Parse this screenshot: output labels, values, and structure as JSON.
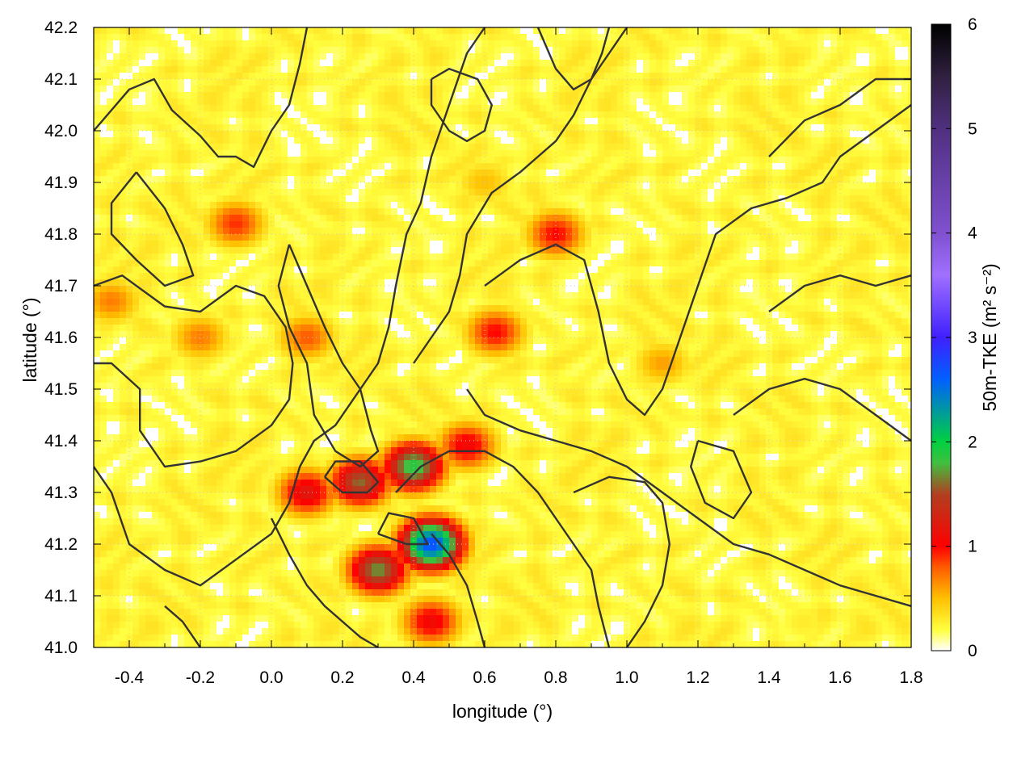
{
  "chart_data": {
    "type": "heatmap",
    "title": "",
    "xlabel": "longitude (°)",
    "ylabel": "latitude (°)",
    "colorbar_label": "50m-TKE (m² s⁻²)",
    "xlim": [
      -0.5,
      1.8
    ],
    "ylim": [
      41.0,
      42.2
    ],
    "x_ticks": [
      "-0.4",
      "-0.2",
      "0.0",
      "0.2",
      "0.4",
      "0.6",
      "0.8",
      "1.0",
      "1.2",
      "1.4",
      "1.6",
      "1.8"
    ],
    "x_tick_values": [
      -0.4,
      -0.2,
      0.0,
      0.2,
      0.4,
      0.6,
      0.8,
      1.0,
      1.2,
      1.4,
      1.6,
      1.8
    ],
    "y_ticks": [
      "41.0",
      "41.1",
      "41.2",
      "41.3",
      "41.4",
      "41.5",
      "41.6",
      "41.7",
      "41.8",
      "41.9",
      "42.0",
      "42.1",
      "42.2"
    ],
    "y_tick_values": [
      41.0,
      41.1,
      41.2,
      41.3,
      41.4,
      41.5,
      41.6,
      41.7,
      41.8,
      41.9,
      42.0,
      42.1,
      42.2
    ],
    "colorbar_range": [
      0,
      6
    ],
    "colorbar_ticks": [
      "0",
      "1",
      "2",
      "3",
      "4",
      "5",
      "6"
    ],
    "colorbar_tick_values": [
      0,
      1,
      2,
      3,
      4,
      5,
      6
    ],
    "colormap": [
      "#ffffff",
      "#ffff40",
      "#ffc000",
      "#ff5a00",
      "#ff0000",
      "#b04020",
      "#40c040",
      "#00d040",
      "#0060ff",
      "#4020ff",
      "#a070ff",
      "#8050d0",
      "#503080",
      "#302040",
      "#000000"
    ],
    "colormap_stops": [
      0,
      0.2,
      0.5,
      0.8,
      1.0,
      1.5,
      1.8,
      2.0,
      2.6,
      3.0,
      3.6,
      4.0,
      5.0,
      5.5,
      6.0
    ],
    "hotspots": [
      {
        "lon": 0.4,
        "lat": 41.35,
        "tke": 1.9
      },
      {
        "lon": 0.45,
        "lat": 41.2,
        "tke": 2.7
      },
      {
        "lon": 0.3,
        "lat": 41.15,
        "tke": 1.7
      },
      {
        "lon": 0.1,
        "lat": 41.3,
        "tke": 1.2
      },
      {
        "lon": 0.25,
        "lat": 41.32,
        "tke": 1.6
      },
      {
        "lon": 0.55,
        "lat": 41.39,
        "tke": 1.1
      },
      {
        "lon": 0.45,
        "lat": 41.05,
        "tke": 1.1
      },
      {
        "lon": -0.1,
        "lat": 41.82,
        "tke": 0.9
      },
      {
        "lon": -0.2,
        "lat": 41.6,
        "tke": 0.7
      },
      {
        "lon": 0.63,
        "lat": 41.61,
        "tke": 1.0
      },
      {
        "lon": 0.8,
        "lat": 41.8,
        "tke": 1.0
      },
      {
        "lon": -0.45,
        "lat": 41.67,
        "tke": 0.7
      },
      {
        "lon": 0.1,
        "lat": 41.6,
        "tke": 0.8
      },
      {
        "lon": 1.5,
        "lat": 41.05,
        "tke": 0.3
      },
      {
        "lon": 1.1,
        "lat": 41.55,
        "tke": 0.6
      },
      {
        "lon": 0.6,
        "lat": 41.9,
        "tke": 0.5
      }
    ],
    "contour_lines": [
      [
        [
          -0.5,
          42.0
        ],
        [
          -0.4,
          42.08
        ],
        [
          -0.33,
          42.1
        ],
        [
          -0.28,
          42.04
        ],
        [
          -0.2,
          41.99
        ],
        [
          -0.15,
          41.95
        ],
        [
          -0.1,
          41.95
        ],
        [
          -0.05,
          41.93
        ],
        [
          0.0,
          42.0
        ],
        [
          0.05,
          42.05
        ],
        [
          0.08,
          42.13
        ],
        [
          0.1,
          42.2
        ]
      ],
      [
        [
          -0.38,
          41.92
        ],
        [
          -0.3,
          41.85
        ],
        [
          -0.25,
          41.78
        ],
        [
          -0.22,
          41.72
        ],
        [
          -0.3,
          41.7
        ],
        [
          -0.38,
          41.75
        ],
        [
          -0.45,
          41.8
        ],
        [
          -0.45,
          41.86
        ],
        [
          -0.38,
          41.92
        ]
      ],
      [
        [
          -0.5,
          41.7
        ],
        [
          -0.42,
          41.72
        ],
        [
          -0.3,
          41.66
        ],
        [
          -0.2,
          41.65
        ],
        [
          -0.1,
          41.7
        ],
        [
          -0.02,
          41.68
        ],
        [
          0.04,
          41.62
        ],
        [
          0.06,
          41.55
        ],
        [
          0.05,
          41.48
        ],
        [
          0.0,
          41.43
        ],
        [
          -0.1,
          41.38
        ],
        [
          -0.2,
          41.36
        ],
        [
          -0.3,
          41.35
        ],
        [
          -0.37,
          41.42
        ],
        [
          -0.37,
          41.5
        ],
        [
          -0.45,
          41.55
        ],
        [
          -0.5,
          41.55
        ]
      ],
      [
        [
          -0.5,
          41.35
        ],
        [
          -0.45,
          41.3
        ],
        [
          -0.4,
          41.2
        ],
        [
          -0.3,
          41.15
        ],
        [
          -0.2,
          41.12
        ],
        [
          -0.1,
          41.17
        ],
        [
          0.0,
          41.22
        ],
        [
          0.05,
          41.28
        ],
        [
          0.08,
          41.35
        ],
        [
          0.12,
          41.4
        ],
        [
          0.18,
          41.43
        ],
        [
          0.25,
          41.5
        ],
        [
          0.3,
          41.55
        ],
        [
          0.33,
          41.62
        ],
        [
          0.35,
          41.7
        ],
        [
          0.38,
          41.8
        ],
        [
          0.42,
          41.86
        ],
        [
          0.45,
          41.95
        ],
        [
          0.5,
          42.05
        ],
        [
          0.55,
          42.15
        ],
        [
          0.6,
          42.2
        ]
      ],
      [
        [
          0.05,
          41.78
        ],
        [
          0.1,
          41.7
        ],
        [
          0.15,
          41.62
        ],
        [
          0.2,
          41.55
        ],
        [
          0.25,
          41.5
        ],
        [
          0.28,
          41.42
        ],
        [
          0.3,
          41.38
        ],
        [
          0.25,
          41.35
        ],
        [
          0.18,
          41.38
        ],
        [
          0.12,
          41.45
        ],
        [
          0.1,
          41.55
        ],
        [
          0.05,
          41.62
        ],
        [
          0.02,
          41.7
        ],
        [
          0.05,
          41.78
        ]
      ],
      [
        [
          0.4,
          41.55
        ],
        [
          0.45,
          41.6
        ],
        [
          0.5,
          41.65
        ],
        [
          0.53,
          41.72
        ],
        [
          0.55,
          41.8
        ],
        [
          0.62,
          41.88
        ],
        [
          0.7,
          41.92
        ],
        [
          0.75,
          41.95
        ],
        [
          0.8,
          41.98
        ],
        [
          0.85,
          42.03
        ],
        [
          0.9,
          42.1
        ],
        [
          0.95,
          42.15
        ],
        [
          1.0,
          42.2
        ]
      ],
      [
        [
          0.6,
          41.7
        ],
        [
          0.7,
          41.75
        ],
        [
          0.8,
          41.78
        ],
        [
          0.88,
          41.75
        ],
        [
          0.92,
          41.65
        ],
        [
          0.95,
          41.55
        ],
        [
          1.0,
          41.48
        ],
        [
          1.05,
          41.45
        ],
        [
          1.1,
          41.5
        ],
        [
          1.15,
          41.6
        ],
        [
          1.2,
          41.7
        ],
        [
          1.25,
          41.8
        ],
        [
          1.35,
          41.85
        ],
        [
          1.45,
          41.87
        ],
        [
          1.55,
          41.9
        ],
        [
          1.6,
          41.95
        ],
        [
          1.7,
          42.0
        ],
        [
          1.8,
          42.05
        ]
      ],
      [
        [
          0.55,
          41.5
        ],
        [
          0.6,
          41.45
        ],
        [
          0.7,
          41.42
        ],
        [
          0.8,
          41.4
        ],
        [
          0.9,
          41.38
        ],
        [
          1.0,
          41.35
        ],
        [
          1.1,
          41.3
        ],
        [
          1.2,
          41.25
        ],
        [
          1.3,
          41.2
        ],
        [
          1.4,
          41.18
        ],
        [
          1.5,
          41.15
        ],
        [
          1.6,
          41.12
        ],
        [
          1.7,
          41.1
        ],
        [
          1.8,
          41.08
        ]
      ],
      [
        [
          0.35,
          41.3
        ],
        [
          0.42,
          41.35
        ],
        [
          0.5,
          41.38
        ],
        [
          0.6,
          41.38
        ],
        [
          0.68,
          41.35
        ],
        [
          0.75,
          41.3
        ],
        [
          0.8,
          41.25
        ],
        [
          0.85,
          41.2
        ],
        [
          0.9,
          41.15
        ],
        [
          0.92,
          41.08
        ],
        [
          0.95,
          41.0
        ]
      ],
      [
        [
          0.45,
          41.22
        ],
        [
          0.5,
          41.18
        ],
        [
          0.55,
          41.12
        ],
        [
          0.58,
          41.05
        ],
        [
          0.6,
          41.0
        ]
      ],
      [
        [
          0.85,
          41.3
        ],
        [
          0.95,
          41.33
        ],
        [
          1.05,
          41.32
        ],
        [
          1.1,
          41.28
        ],
        [
          1.12,
          41.2
        ],
        [
          1.1,
          41.12
        ],
        [
          1.05,
          41.05
        ],
        [
          1.0,
          41.0
        ]
      ],
      [
        [
          1.3,
          41.45
        ],
        [
          1.4,
          41.5
        ],
        [
          1.5,
          41.52
        ],
        [
          1.6,
          41.5
        ],
        [
          1.7,
          41.45
        ],
        [
          1.8,
          41.4
        ]
      ],
      [
        [
          1.4,
          41.65
        ],
        [
          1.5,
          41.7
        ],
        [
          1.6,
          41.72
        ],
        [
          1.7,
          41.7
        ],
        [
          1.8,
          41.72
        ]
      ],
      [
        [
          1.4,
          41.95
        ],
        [
          1.5,
          42.02
        ],
        [
          1.6,
          42.05
        ],
        [
          1.7,
          42.1
        ],
        [
          1.8,
          42.1
        ]
      ],
      [
        [
          0.45,
          42.1
        ],
        [
          0.5,
          42.12
        ],
        [
          0.58,
          42.1
        ],
        [
          0.62,
          42.05
        ],
        [
          0.6,
          42.0
        ],
        [
          0.55,
          41.98
        ],
        [
          0.5,
          42.0
        ],
        [
          0.45,
          42.05
        ],
        [
          0.45,
          42.1
        ]
      ],
      [
        [
          0.75,
          42.2
        ],
        [
          0.8,
          42.12
        ],
        [
          0.85,
          42.08
        ],
        [
          0.9,
          42.1
        ],
        [
          0.93,
          42.15
        ],
        [
          0.95,
          42.2
        ]
      ],
      [
        [
          0.15,
          41.33
        ],
        [
          0.2,
          41.3
        ],
        [
          0.27,
          41.3
        ],
        [
          0.3,
          41.32
        ],
        [
          0.25,
          41.36
        ],
        [
          0.18,
          41.36
        ],
        [
          0.15,
          41.33
        ]
      ],
      [
        [
          0.3,
          41.22
        ],
        [
          0.38,
          41.2
        ],
        [
          0.44,
          41.2
        ],
        [
          0.4,
          41.25
        ],
        [
          0.33,
          41.26
        ],
        [
          0.3,
          41.22
        ]
      ],
      [
        [
          1.2,
          41.4
        ],
        [
          1.3,
          41.38
        ],
        [
          1.35,
          41.3
        ],
        [
          1.3,
          41.25
        ],
        [
          1.22,
          41.28
        ],
        [
          1.18,
          41.35
        ],
        [
          1.2,
          41.4
        ]
      ],
      [
        [
          -0.3,
          41.08
        ],
        [
          -0.25,
          41.05
        ],
        [
          -0.2,
          41.0
        ]
      ],
      [
        [
          0.0,
          41.25
        ],
        [
          0.05,
          41.18
        ],
        [
          0.1,
          41.12
        ],
        [
          0.15,
          41.08
        ],
        [
          0.2,
          41.05
        ],
        [
          0.25,
          41.02
        ],
        [
          0.3,
          41.0
        ]
      ]
    ]
  }
}
